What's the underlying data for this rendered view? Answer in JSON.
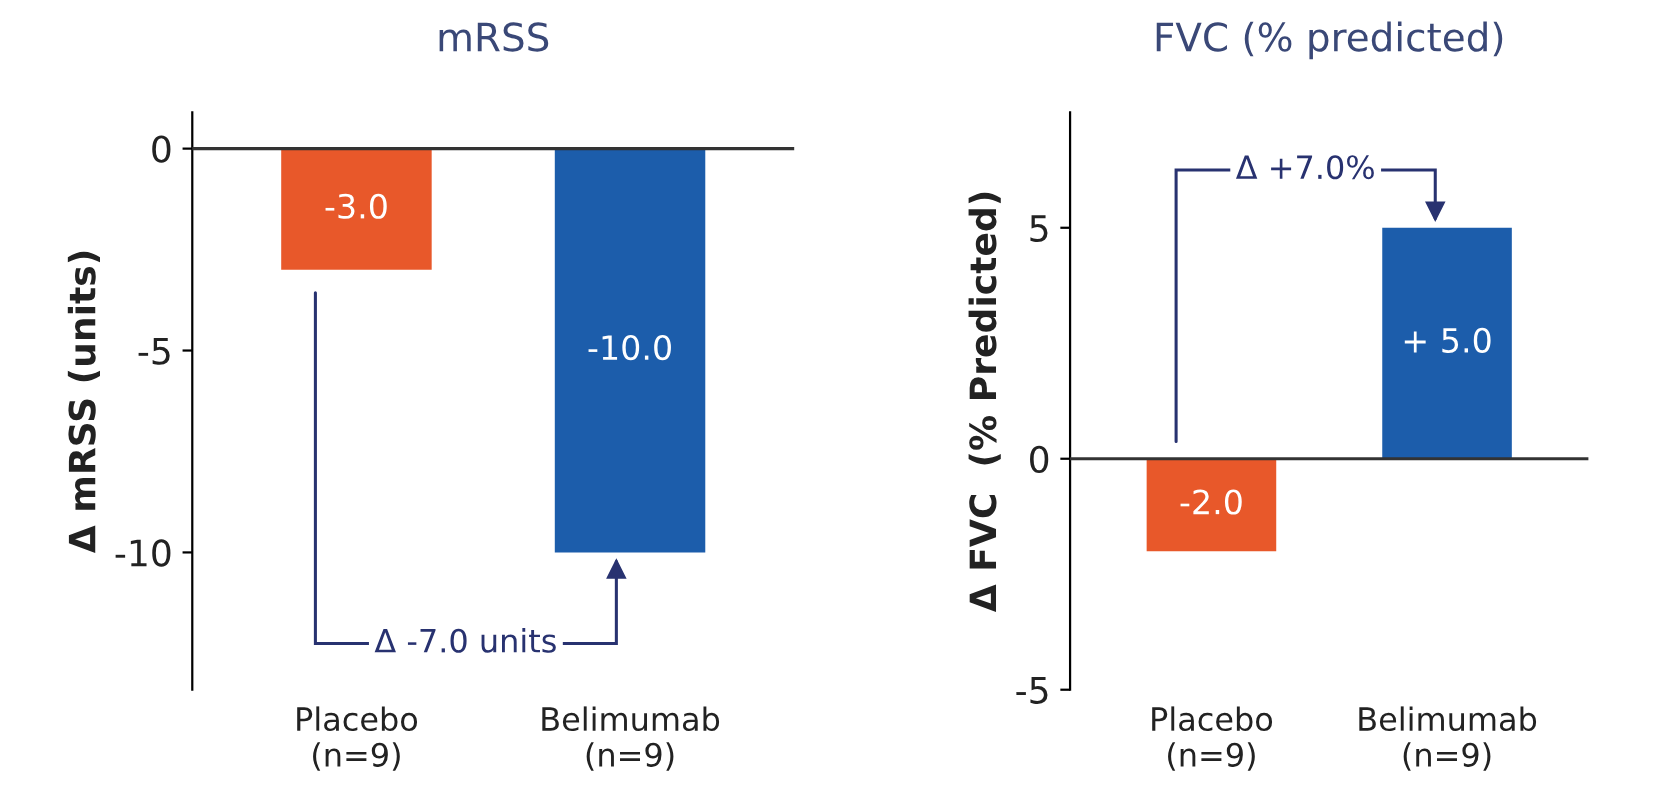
{
  "chart_data": [
    {
      "type": "bar",
      "title": "mRSS",
      "ylabel": "Δ mRSS (units)",
      "categories": [
        "Placebo\n(n=9)",
        "Belimumab\n(n=9)"
      ],
      "values": [
        -3.0,
        -10.0
      ],
      "colors": [
        "#e8582a",
        "#1c5dab"
      ],
      "value_labels": [
        "-3.0",
        "-10.0"
      ],
      "ylim": [
        -13.4,
        0.9
      ],
      "yticks": [
        0,
        -5,
        -10
      ],
      "annotations": [
        "Δ -7.0 units"
      ],
      "ref_lines": [
        {
          "axis": "y",
          "value": 0,
          "color": "#333333"
        }
      ]
    },
    {
      "type": "bar",
      "title": "FVC (% predicted)",
      "ylabel": "Δ FVC  (% Predicted)",
      "categories": [
        "Placebo\n(n=9)",
        "Belimumab\n(n=9)"
      ],
      "values": [
        -2.0,
        5.0
      ],
      "colors": [
        "#e8582a",
        "#1c5dab"
      ],
      "value_labels": [
        "-2.0",
        "+ 5.0"
      ],
      "ylim": [
        -5,
        7.5
      ],
      "yticks": [
        -5,
        0,
        5
      ],
      "annotations": [
        "Δ +7.0%"
      ],
      "ref_lines": [
        {
          "axis": "y",
          "value": 0,
          "color": "#333333"
        }
      ]
    }
  ]
}
